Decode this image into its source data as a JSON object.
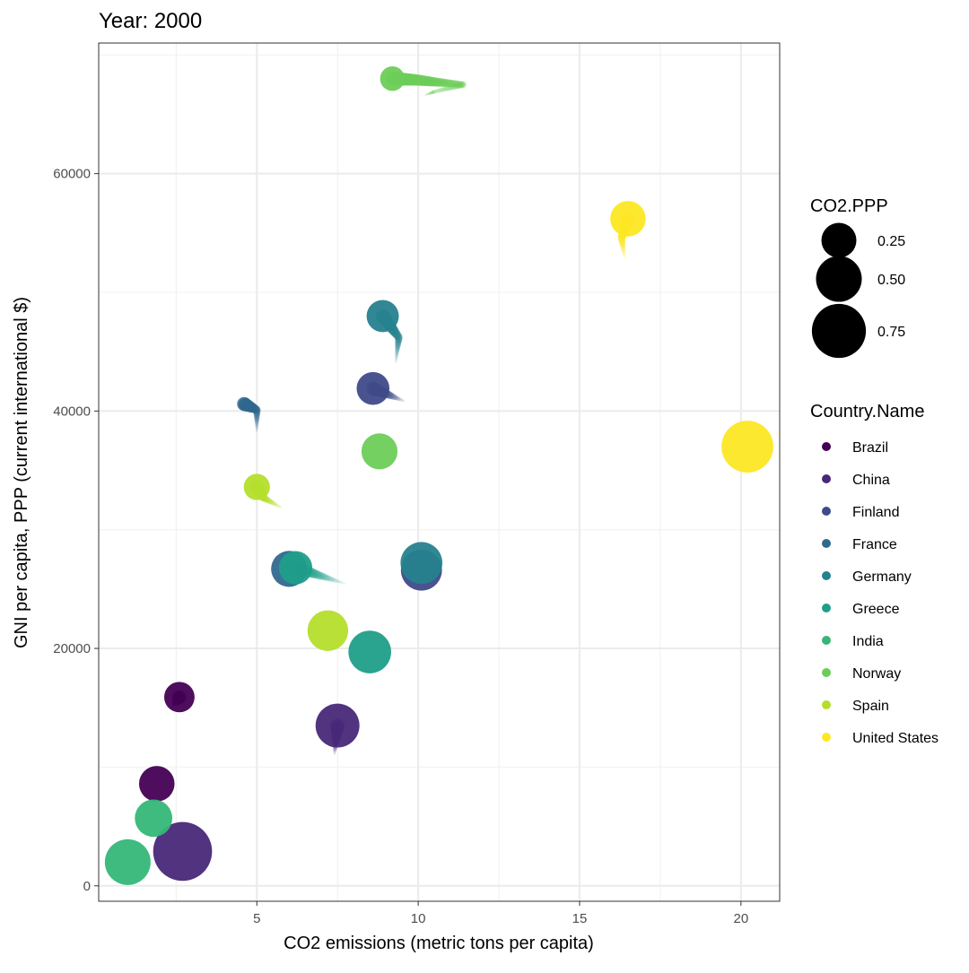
{
  "chart_data": {
    "type": "scatter",
    "title": "Year: 2000",
    "xlabel": "CO2 emissions (metric tons per capita)",
    "ylabel": "GNI per capita, PPP (current international $)",
    "xlim": [
      0.1,
      21.2
    ],
    "ylim": [
      -1300,
      71000
    ],
    "x_ticks": [
      5,
      10,
      15,
      20
    ],
    "y_ticks": [
      0,
      20000,
      40000,
      60000
    ],
    "x_tick_labels": [
      "5",
      "10",
      "15",
      "20"
    ],
    "y_tick_labels": [
      "0",
      "20000",
      "40000",
      "60000"
    ],
    "grid": true,
    "size_legend": {
      "title": "CO2.PPP",
      "entries": [
        {
          "label": "0.25",
          "value": 0.25
        },
        {
          "label": "0.50",
          "value": 0.5
        },
        {
          "label": "0.75",
          "value": 0.75
        }
      ]
    },
    "color_legend": {
      "title": "Country.Name",
      "entries": [
        {
          "label": "Brazil",
          "color": "#440154"
        },
        {
          "label": "China",
          "color": "#482878"
        },
        {
          "label": "Finland",
          "color": "#3E4A89"
        },
        {
          "label": "France",
          "color": "#31688E"
        },
        {
          "label": "Germany",
          "color": "#26828E"
        },
        {
          "label": "Greece",
          "color": "#1F9E89"
        },
        {
          "label": "India",
          "color": "#35B779"
        },
        {
          "label": "Norway",
          "color": "#6DCD59"
        },
        {
          "label": "Spain",
          "color": "#B4DE2C"
        },
        {
          "label": "United States",
          "color": "#FDE725"
        }
      ]
    },
    "points": [
      {
        "country": "Brazil",
        "x": 2.6,
        "y": 15900,
        "size": 0.17
      },
      {
        "country": "Brazil",
        "x": 1.9,
        "y": 8600,
        "size": 0.26
      },
      {
        "country": "China",
        "x": 7.5,
        "y": 13500,
        "size": 0.45
      },
      {
        "country": "China",
        "x": 2.7,
        "y": 2900,
        "size": 0.92
      },
      {
        "country": "Finland",
        "x": 8.6,
        "y": 41900,
        "size": 0.21
      },
      {
        "country": "Finland",
        "x": 10.1,
        "y": 26600,
        "size": 0.38
      },
      {
        "country": "France",
        "x": 6.0,
        "y": 26700,
        "size": 0.27
      },
      {
        "country": "Germany",
        "x": 8.9,
        "y": 48000,
        "size": 0.2
      },
      {
        "country": "Germany",
        "x": 10.1,
        "y": 27200,
        "size": 0.4
      },
      {
        "country": "Greece",
        "x": 6.2,
        "y": 26800,
        "size": 0.22
      },
      {
        "country": "Greece",
        "x": 8.5,
        "y": 19700,
        "size": 0.42
      },
      {
        "country": "India",
        "x": 1.8,
        "y": 5700,
        "size": 0.3
      },
      {
        "country": "India",
        "x": 1.0,
        "y": 2000,
        "size": 0.5
      },
      {
        "country": "Norway",
        "x": 8.8,
        "y": 36600,
        "size": 0.27
      },
      {
        "country": "Norway",
        "x": 9.2,
        "y": 68000,
        "size": 0.09
      },
      {
        "country": "Spain",
        "x": 7.2,
        "y": 21500,
        "size": 0.37
      },
      {
        "country": "Spain",
        "x": 5.0,
        "y": 33600,
        "size": 0.11
      },
      {
        "country": "United States",
        "x": 20.2,
        "y": 37000,
        "size": 0.68
      },
      {
        "country": "United States",
        "x": 16.5,
        "y": 56200,
        "size": 0.26
      }
    ],
    "trails": [
      {
        "country": "Brazil",
        "points": [
          [
            2.6,
            15900
          ],
          [
            2.4,
            15100
          ]
        ]
      },
      {
        "country": "China",
        "points": [
          [
            7.5,
            13500
          ],
          [
            7.4,
            11000
          ]
        ]
      },
      {
        "country": "Finland",
        "points": [
          [
            8.6,
            41900
          ],
          [
            9.6,
            40800
          ]
        ]
      },
      {
        "country": "France",
        "points": [
          [
            4.6,
            40600
          ],
          [
            5.0,
            40100
          ],
          [
            5.0,
            38200
          ]
        ]
      },
      {
        "country": "Germany",
        "points": [
          [
            8.9,
            48000
          ],
          [
            9.4,
            46200
          ],
          [
            9.3,
            44000
          ]
        ]
      },
      {
        "country": "Greece",
        "points": [
          [
            6.2,
            26800
          ],
          [
            7.8,
            25400
          ]
        ]
      },
      {
        "country": "Norway",
        "points": [
          [
            9.2,
            68000
          ],
          [
            9.9,
            67900
          ],
          [
            10.6,
            67700
          ],
          [
            11.4,
            67500
          ],
          [
            10.5,
            66900
          ],
          [
            10.2,
            66600
          ]
        ]
      },
      {
        "country": "Spain",
        "points": [
          [
            5.0,
            33600
          ],
          [
            5.2,
            32700
          ],
          [
            5.8,
            31800
          ]
        ]
      },
      {
        "country": "United States",
        "points": [
          [
            16.5,
            56200
          ],
          [
            16.3,
            54600
          ],
          [
            16.4,
            52800
          ]
        ]
      }
    ]
  }
}
